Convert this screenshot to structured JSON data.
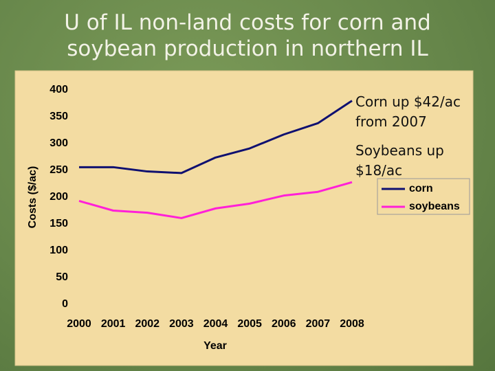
{
  "chart_data": {
    "type": "line",
    "title": "U of IL non-land costs for corn and soybean production in northern IL",
    "x": [
      2000,
      2001,
      2002,
      2003,
      2004,
      2005,
      2006,
      2007,
      2008
    ],
    "xlim": [
      2000,
      2008
    ],
    "xticks": [
      2000,
      2001,
      2002,
      2003,
      2004,
      2005,
      2006,
      2007,
      2008
    ],
    "ylim": [
      0,
      400
    ],
    "yticks": [
      0,
      50,
      100,
      150,
      200,
      250,
      300,
      350,
      400
    ],
    "xlabel": "Year",
    "ylabel": "Costs ($/ac)",
    "series": [
      {
        "name": "corn",
        "color": "#0f1070",
        "values": [
          256,
          256,
          248,
          245,
          274,
          291,
          317,
          338,
          380
        ]
      },
      {
        "name": "soybeans",
        "color": "#ff20d8",
        "values": [
          193,
          175,
          171,
          161,
          179,
          188,
          203,
          210,
          228
        ]
      }
    ],
    "annotations": [
      "Corn up $42/ac from 2007",
      "Soybeans up $18/ac"
    ],
    "legend": "right"
  }
}
